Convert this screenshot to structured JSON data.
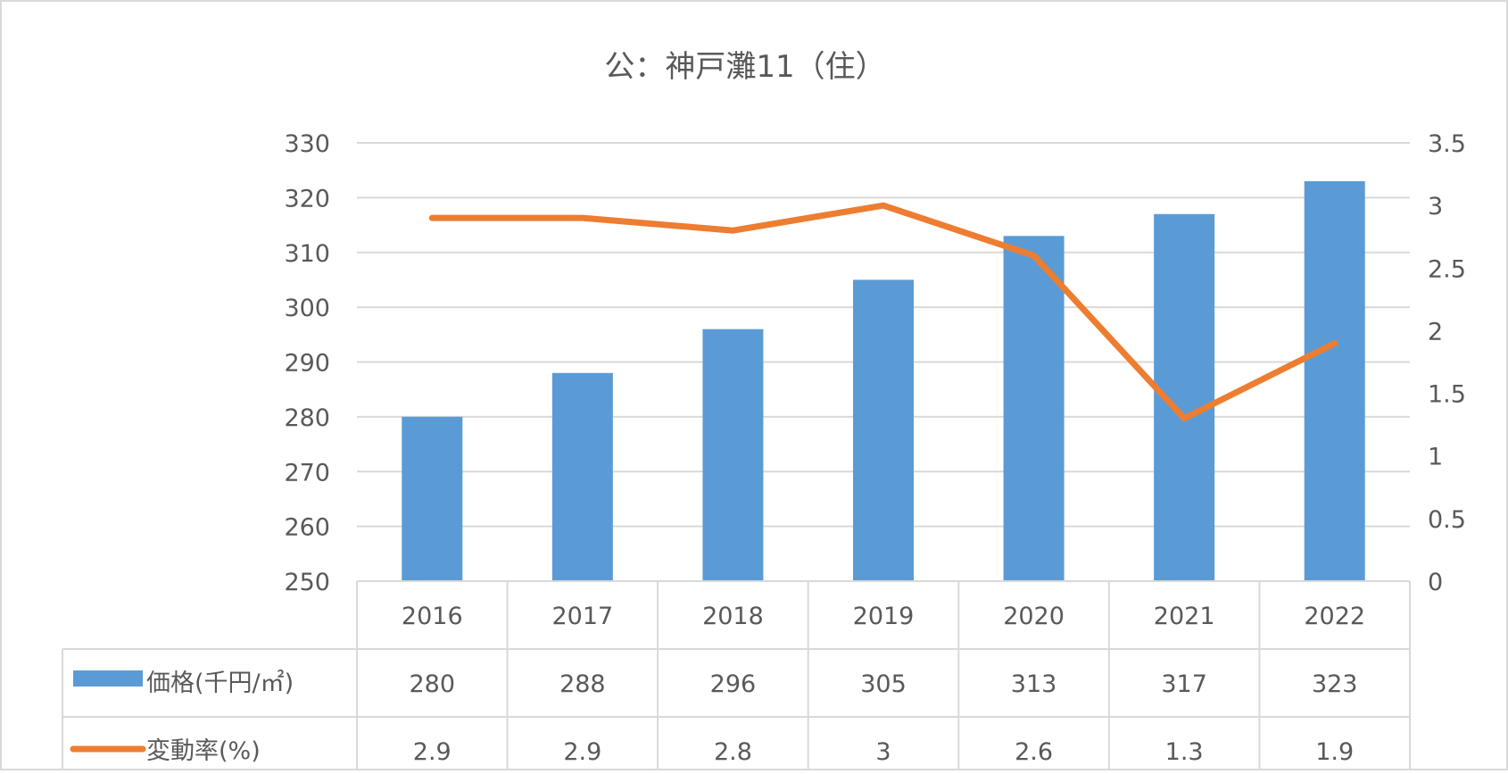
{
  "chart_data": {
    "type": "bar",
    "title": "公：神戸灘11（住）",
    "categories": [
      "2016",
      "2017",
      "2018",
      "2019",
      "2020",
      "2021",
      "2022"
    ],
    "series": [
      {
        "name": "価格(千円/㎡)",
        "type": "bar",
        "axis": "left",
        "color": "#5B9BD5",
        "values": [
          280,
          288,
          296,
          305,
          313,
          317,
          323
        ]
      },
      {
        "name": "変動率(%)",
        "type": "line",
        "axis": "right",
        "color": "#ED7D31",
        "values": [
          2.9,
          2.9,
          2.8,
          3,
          2.6,
          1.3,
          1.9
        ]
      }
    ],
    "ylim": [
      250,
      330
    ],
    "yticks": [
      "250",
      "260",
      "270",
      "280",
      "290",
      "300",
      "310",
      "320",
      "330"
    ],
    "y2lim": [
      0,
      3.5
    ],
    "y2ticks": [
      "0",
      "0.5",
      "1",
      "1.5",
      "2",
      "2.5",
      "3",
      "3.5"
    ],
    "table": {
      "rows": [
        {
          "label": "価格(千円/㎡)",
          "cells": [
            "280",
            "288",
            "296",
            "305",
            "313",
            "317",
            "323"
          ]
        },
        {
          "label": "変動率(%)",
          "cells": [
            "2.9",
            "2.9",
            "2.8",
            "3",
            "2.6",
            "1.3",
            "1.9"
          ]
        }
      ]
    },
    "grid": true,
    "legend": "data table"
  }
}
